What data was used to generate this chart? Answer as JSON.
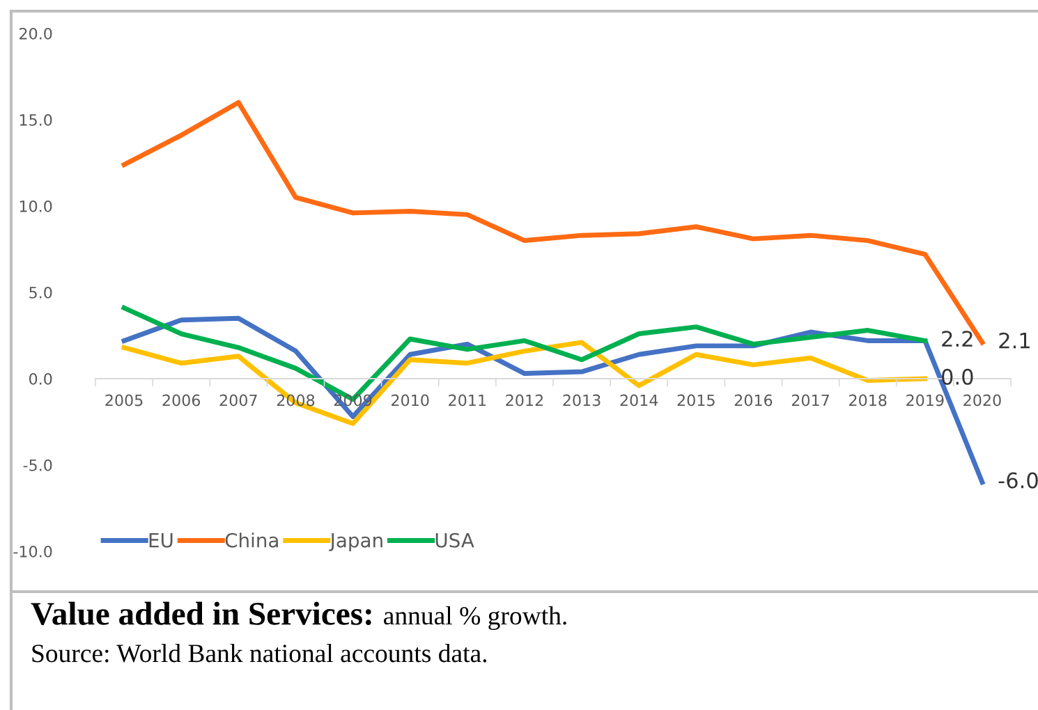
{
  "chart_data": {
    "type": "line",
    "title": "Value added in Services:",
    "subtitle": "annual % growth.",
    "annotations": [
      "Source: World Bank national accounts data."
    ],
    "categories": [
      "2005",
      "2006",
      "2007",
      "2008",
      "2009",
      "2010",
      "2011",
      "2012",
      "2013",
      "2014",
      "2015",
      "2016",
      "2017",
      "2018",
      "2019",
      "2020"
    ],
    "series": [
      {
        "name": "EU",
        "color": "#4472c4",
        "values": [
          2.2,
          3.4,
          3.5,
          1.6,
          -2.2,
          1.4,
          2.0,
          0.3,
          0.4,
          1.4,
          1.9,
          1.9,
          2.7,
          2.2,
          2.2,
          -6.0
        ],
        "value_labels": [
          null,
          null,
          null,
          null,
          null,
          null,
          null,
          null,
          null,
          null,
          null,
          null,
          null,
          null,
          null,
          "-6.0"
        ]
      },
      {
        "name": "China",
        "color": "#ff6a13",
        "values": [
          12.4,
          14.1,
          16.0,
          10.5,
          9.6,
          9.7,
          9.5,
          8.0,
          8.3,
          8.4,
          8.8,
          8.1,
          8.3,
          8.0,
          7.2,
          2.1
        ],
        "value_labels": [
          null,
          null,
          null,
          null,
          null,
          null,
          null,
          null,
          null,
          null,
          null,
          null,
          null,
          null,
          null,
          "2.1"
        ]
      },
      {
        "name": "Japan",
        "color": "#ffc000",
        "values": [
          1.8,
          0.9,
          1.3,
          -1.4,
          -2.6,
          1.1,
          0.9,
          1.6,
          2.1,
          -0.4,
          1.4,
          0.8,
          1.2,
          -0.1,
          0.0,
          null
        ],
        "value_labels": [
          null,
          null,
          null,
          null,
          null,
          null,
          null,
          null,
          null,
          null,
          null,
          null,
          null,
          null,
          "0.0",
          null
        ]
      },
      {
        "name": "USA",
        "color": "#00b050",
        "values": [
          4.1,
          2.6,
          1.8,
          0.6,
          -1.2,
          2.3,
          1.7,
          2.2,
          1.1,
          2.6,
          3.0,
          2.0,
          2.4,
          2.8,
          2.2,
          null
        ],
        "value_labels": [
          null,
          null,
          null,
          null,
          null,
          null,
          null,
          null,
          null,
          null,
          null,
          null,
          null,
          null,
          "2.2",
          null
        ]
      }
    ],
    "ylim": [
      -10,
      20
    ],
    "yticks": [
      {
        "value": -10,
        "label": "-10.0"
      },
      {
        "value": -5,
        "label": "-5.0"
      },
      {
        "value": 0,
        "label": "0.0"
      },
      {
        "value": 5,
        "label": "5.0"
      },
      {
        "value": 10,
        "label": "10.0"
      },
      {
        "value": 15,
        "label": "15.0"
      },
      {
        "value": 20,
        "label": "20.0"
      }
    ],
    "grid": false,
    "legend": "bottom left",
    "marker": "none",
    "line_style": "solid"
  }
}
